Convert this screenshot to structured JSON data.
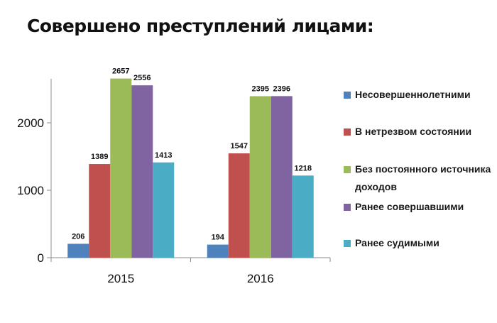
{
  "chart_data": {
    "type": "bar",
    "title": "Совершено преступлений лицами:",
    "categories": [
      "2015",
      "2016"
    ],
    "series": [
      {
        "name": "Несовершеннолетними",
        "color": "#4f81bd",
        "values": [
          206,
          194
        ]
      },
      {
        "name": "В нетрезвом состоянии",
        "color": "#c0504d",
        "values": [
          1389,
          1547
        ]
      },
      {
        "name": "Без постоянного источника доходов",
        "color": "#9bbb59",
        "values": [
          2657,
          2395
        ]
      },
      {
        "name": "Ранее совершавшими",
        "color": "#8064a2",
        "values": [
          2556,
          2396
        ]
      },
      {
        "name": "Ранее судимыми",
        "color": "#4bacc6",
        "values": [
          1413,
          1218
        ]
      }
    ],
    "yticks": [
      0,
      1000,
      2000
    ],
    "ylim": [
      0,
      2800
    ],
    "grid": false,
    "legend_position": "right",
    "xlabel": "",
    "ylabel": ""
  }
}
